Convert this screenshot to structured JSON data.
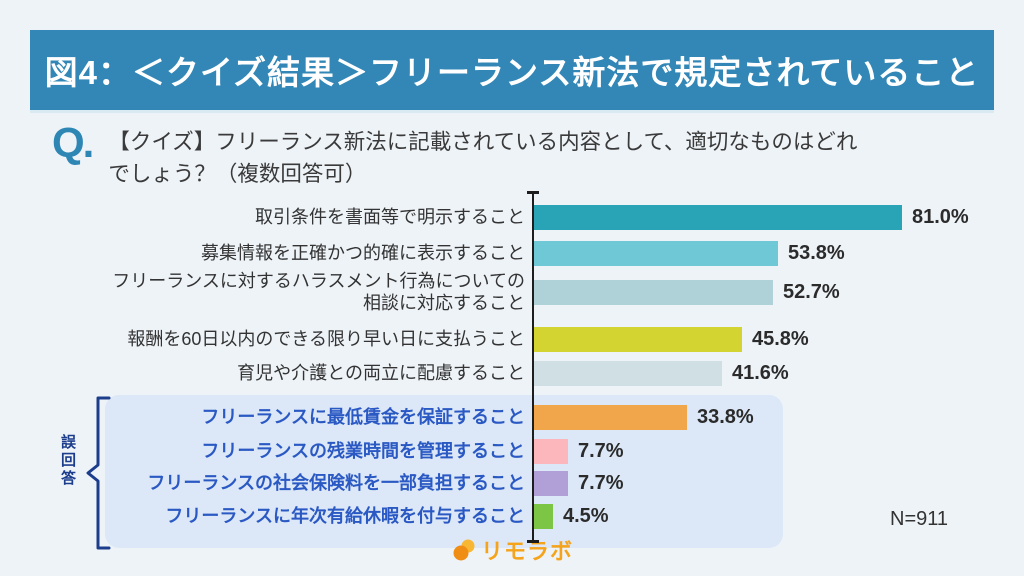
{
  "page": {
    "title": "図4：＜クイズ結果＞フリーランス新法で規定されていること",
    "question_prefix": "Q.",
    "question_text": "【クイズ】フリーランス新法に記載されている内容として、適切なものはどれ\nでしょう？（複数回答可）",
    "wrong_answer_group_label": "誤回答",
    "logo_text": "リモラボ"
  },
  "colors": {
    "background": "#EEF3F8",
    "titlebar_bg": "#3287B6",
    "titlebar_text": "#FFFFFF",
    "q_mark": "#2E86B4",
    "normal_label": "#333333",
    "wrong_label": "#2B59C4",
    "error_box_bg": "#DCE8F7",
    "bracket": "#1C3D8C",
    "axis": "#1d1d1d",
    "logo_orange": "#F5A31B"
  },
  "chart_data": {
    "type": "bar",
    "orientation": "horizontal",
    "title": "＜クイズ結果＞フリーランス新法で規定されていること",
    "unit": "%",
    "xlim": [
      0,
      100
    ],
    "grid": false,
    "legend": false,
    "categories": [
      "取引条件を書面等で明示すること",
      "募集情報を正確かつ的確に表示すること",
      "フリーランスに対するハラスメント行為についての\n相談に対応すること",
      "報酬を60日以内のできる限り早い日に支払うこと",
      "育児や介護との両立に配慮すること",
      "フリーランスに最低賃金を保証すること",
      "フリーランスの残業時間を管理すること",
      "フリーランスの社会保険料を一部負担すること",
      "フリーランスに年次有給休暇を付与すること"
    ],
    "values": [
      81.0,
      53.8,
      52.7,
      45.8,
      41.6,
      33.8,
      7.7,
      7.7,
      4.5
    ],
    "value_labels": [
      "81.0%",
      "53.8%",
      "52.7%",
      "45.8%",
      "41.6%",
      "33.8%",
      "7.7%",
      "7.7%",
      "4.5%"
    ],
    "bar_colors": [
      "#29A4B6",
      "#6FC8D5",
      "#AFD2D9",
      "#D3D431",
      "#CFDFE3",
      "#F2A64C",
      "#FBB7BB",
      "#B1A0D8",
      "#7DC544"
    ],
    "wrong_answer_indices": [
      5,
      6,
      7,
      8
    ],
    "sample_size": "N=911"
  }
}
